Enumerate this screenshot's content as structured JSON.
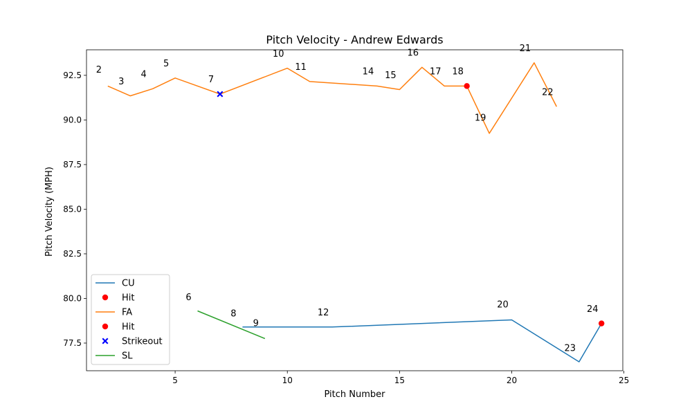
{
  "chart_data": {
    "type": "line",
    "title": "Pitch Velocity - Andrew Edwards",
    "xlabel": "Pitch Number",
    "ylabel": "Pitch Velocity (MPH)",
    "xlim": [
      1.05,
      24.95
    ],
    "ylim": [
      75.95,
      93.93
    ],
    "xticks": [
      5,
      10,
      15,
      20,
      25
    ],
    "yticks": [
      77.5,
      80.0,
      82.5,
      85.0,
      87.5,
      90.0,
      92.5
    ],
    "legend_position": "lower-left",
    "colors": {
      "CU": "#1f77b4",
      "FA": "#ff7f0e",
      "SL": "#2ca02c",
      "hit": "#ff0000",
      "strikeout": "#0000ff"
    },
    "series": [
      {
        "name": "CU",
        "type": "line",
        "x": [
          8,
          9,
          12,
          20,
          23,
          24
        ],
        "y": [
          78.4,
          78.4,
          78.4,
          78.8,
          76.45,
          78.6
        ]
      },
      {
        "name": "FA",
        "type": "line",
        "x": [
          2,
          3,
          4,
          5,
          7,
          10,
          11,
          14,
          15,
          16,
          17,
          18,
          19,
          21,
          22
        ],
        "y": [
          91.9,
          91.35,
          91.75,
          92.35,
          91.45,
          92.9,
          92.15,
          91.9,
          91.7,
          92.95,
          91.9,
          91.9,
          89.25,
          93.2,
          90.75
        ]
      },
      {
        "name": "SL",
        "type": "line",
        "x": [
          6,
          9
        ],
        "y": [
          79.3,
          77.75
        ]
      },
      {
        "name": "Hit",
        "type": "scatter",
        "marker": "circle",
        "x": [
          24
        ],
        "y": [
          78.6
        ]
      },
      {
        "name": "Hit",
        "type": "scatter",
        "marker": "circle",
        "x": [
          18
        ],
        "y": [
          91.9
        ]
      },
      {
        "name": "Strikeout",
        "type": "scatter",
        "marker": "x",
        "x": [
          7
        ],
        "y": [
          91.45
        ]
      }
    ],
    "annotations": [
      {
        "text": "2",
        "x": 1.6,
        "y": 92.65
      },
      {
        "text": "3",
        "x": 2.6,
        "y": 92.0
      },
      {
        "text": "4",
        "x": 3.6,
        "y": 92.4
      },
      {
        "text": "5",
        "x": 4.6,
        "y": 93.0
      },
      {
        "text": "6",
        "x": 5.6,
        "y": 79.9
      },
      {
        "text": "7",
        "x": 6.6,
        "y": 92.1
      },
      {
        "text": "8",
        "x": 7.6,
        "y": 79.0
      },
      {
        "text": "9",
        "x": 8.6,
        "y": 78.45
      },
      {
        "text": "10",
        "x": 9.6,
        "y": 93.55
      },
      {
        "text": "11",
        "x": 10.6,
        "y": 92.8
      },
      {
        "text": "12",
        "x": 11.6,
        "y": 79.05
      },
      {
        "text": "14",
        "x": 13.6,
        "y": 92.55
      },
      {
        "text": "15",
        "x": 14.6,
        "y": 92.35
      },
      {
        "text": "16",
        "x": 15.6,
        "y": 93.6
      },
      {
        "text": "17",
        "x": 16.6,
        "y": 92.55
      },
      {
        "text": "18",
        "x": 17.6,
        "y": 92.55
      },
      {
        "text": "19",
        "x": 18.6,
        "y": 89.95
      },
      {
        "text": "20",
        "x": 19.6,
        "y": 79.5
      },
      {
        "text": "21",
        "x": 20.6,
        "y": 93.85
      },
      {
        "text": "22",
        "x": 21.6,
        "y": 91.4
      },
      {
        "text": "23",
        "x": 22.6,
        "y": 77.05
      },
      {
        "text": "24",
        "x": 23.6,
        "y": 79.25
      }
    ],
    "legend": [
      {
        "label": "CU",
        "kind": "line",
        "color_key": "CU"
      },
      {
        "label": "Hit",
        "kind": "dot",
        "color_key": "hit"
      },
      {
        "label": "FA",
        "kind": "line",
        "color_key": "FA"
      },
      {
        "label": "Hit",
        "kind": "dot",
        "color_key": "hit"
      },
      {
        "label": "Strikeout",
        "kind": "x",
        "color_key": "strikeout"
      },
      {
        "label": "SL",
        "kind": "line",
        "color_key": "SL"
      }
    ]
  }
}
